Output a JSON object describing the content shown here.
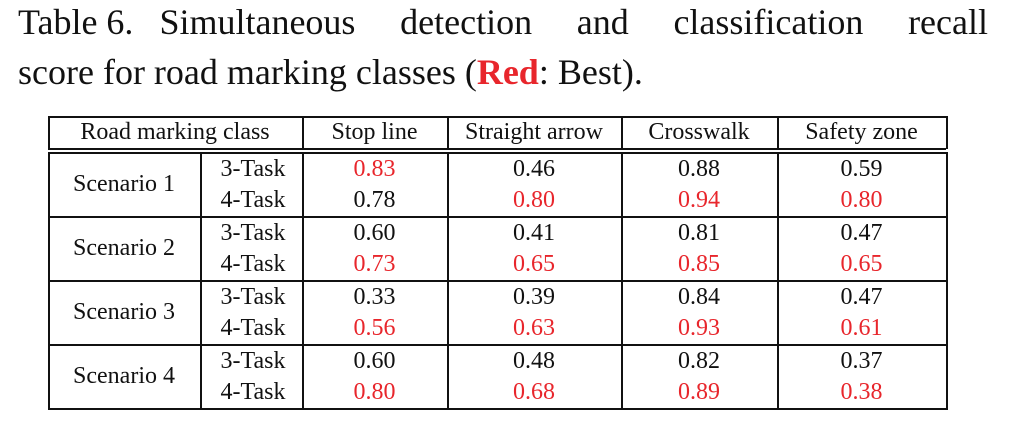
{
  "caption": {
    "label": "Table 6.",
    "line1": "Simultaneous detection and classification recall",
    "line2": "score for road marking classes (",
    "highlight": "Red",
    "end": ": Best)."
  },
  "highlight_color": "#e8262c",
  "table": {
    "header": [
      "Road marking class",
      "Stop line",
      "Straight arrow",
      "Crosswalk",
      "Safety zone"
    ],
    "groups": [
      {
        "name": "Scenario 1",
        "rows": [
          {
            "task": "3-Task",
            "values": [
              "0.83",
              "0.46",
              "0.88",
              "0.59"
            ],
            "best": [
              true,
              false,
              false,
              false
            ]
          },
          {
            "task": "4-Task",
            "values": [
              "0.78",
              "0.80",
              "0.94",
              "0.80"
            ],
            "best": [
              false,
              true,
              true,
              true
            ]
          }
        ]
      },
      {
        "name": "Scenario 2",
        "rows": [
          {
            "task": "3-Task",
            "values": [
              "0.60",
              "0.41",
              "0.81",
              "0.47"
            ],
            "best": [
              false,
              false,
              false,
              false
            ]
          },
          {
            "task": "4-Task",
            "values": [
              "0.73",
              "0.65",
              "0.85",
              "0.65"
            ],
            "best": [
              true,
              true,
              true,
              true
            ]
          }
        ]
      },
      {
        "name": "Scenario 3",
        "rows": [
          {
            "task": "3-Task",
            "values": [
              "0.33",
              "0.39",
              "0.84",
              "0.47"
            ],
            "best": [
              false,
              false,
              false,
              false
            ]
          },
          {
            "task": "4-Task",
            "values": [
              "0.56",
              "0.63",
              "0.93",
              "0.61"
            ],
            "best": [
              true,
              true,
              true,
              true
            ]
          }
        ]
      },
      {
        "name": "Scenario 4",
        "rows": [
          {
            "task": "3-Task",
            "values": [
              "0.60",
              "0.48",
              "0.82",
              "0.37"
            ],
            "best": [
              false,
              false,
              false,
              false
            ]
          },
          {
            "task": "4-Task",
            "values": [
              "0.80",
              "0.68",
              "0.89",
              "0.38"
            ],
            "best": [
              true,
              true,
              true,
              true
            ]
          }
        ]
      }
    ]
  }
}
